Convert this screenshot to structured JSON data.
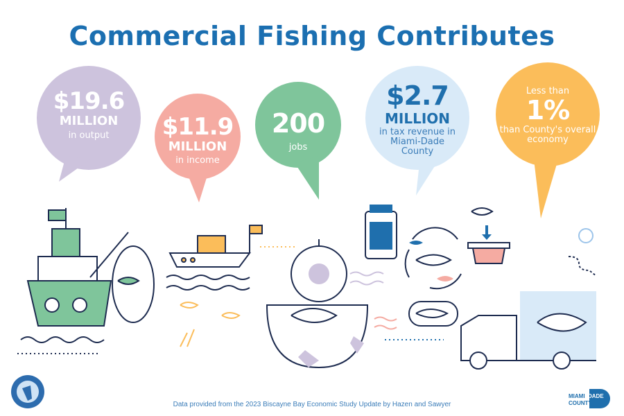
{
  "title": "Commercial Fishing Contributes",
  "stats": [
    {
      "value": "$19.6",
      "unit": "MILLION",
      "label": "in output",
      "color": "#cdc3dd"
    },
    {
      "value": "$11.9",
      "unit": "MILLION",
      "label": "in income",
      "color": "#f5aba2"
    },
    {
      "value": "200",
      "label": "jobs",
      "color": "#7fc59b"
    },
    {
      "value": "$2.7",
      "unit": "MILLION",
      "label": "in tax revenue in Miami-Dade County",
      "color": "#d9eaf8"
    },
    {
      "prefix": "Less than",
      "value": "1%",
      "label": "than County's overall economy",
      "color": "#fbbd5a"
    }
  ],
  "footer": "Data provided from the 2023 Biscayne Bay Economic Study Update by Hazen and Sawyer",
  "logos": {
    "left": "South Florida Water Management District seal",
    "right_line1": "MIAMI",
    "right_line2": "DADE",
    "right_line3": "COUNTY"
  },
  "accent_color": "#1b6fb1",
  "line_color": "#1d2b4f"
}
